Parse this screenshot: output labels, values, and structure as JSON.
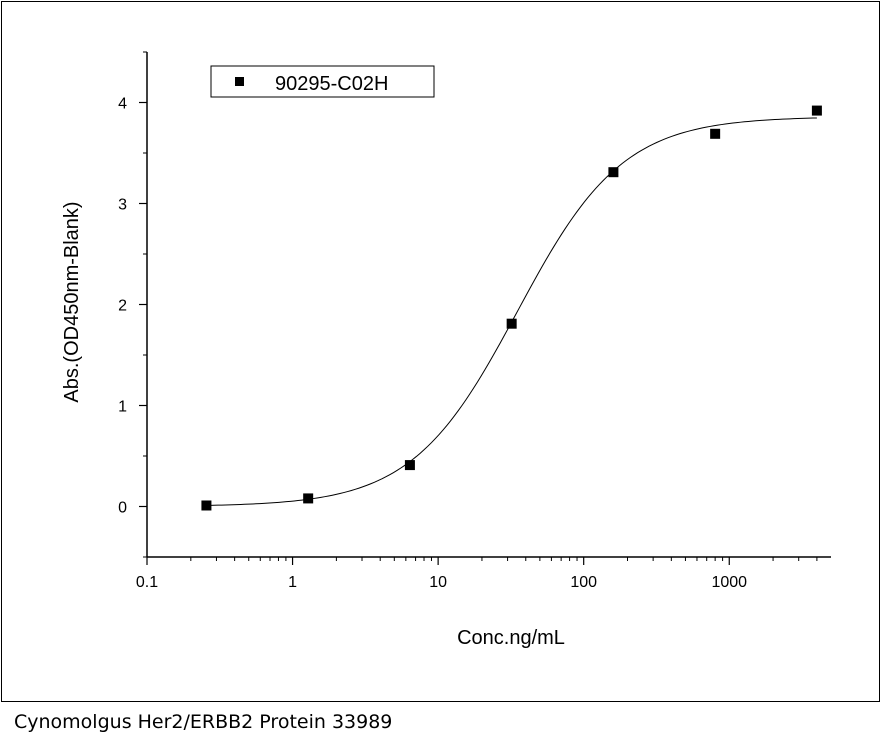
{
  "caption": "Cynomolgus Her2/ERBB2 Protein 33989",
  "colors": {
    "marker": "#000000",
    "line": "#000000",
    "background": "#ffffff"
  },
  "chart_data": {
    "type": "scatter",
    "title": "",
    "xlabel": "Conc.ng/mL",
    "ylabel": "Abs.(OD450nm-Blank)",
    "xscale": "log",
    "xlim": [
      0.1,
      5000
    ],
    "ylim": [
      -0.5,
      4.5
    ],
    "xticks": [
      0.1,
      1,
      10,
      100,
      1000
    ],
    "xtick_labels": [
      "0.1",
      "1",
      "10",
      "100",
      "1000"
    ],
    "yticks": [
      0,
      1,
      2,
      3,
      4
    ],
    "ytick_labels": [
      "0",
      "1",
      "2",
      "3",
      "4"
    ],
    "grid": false,
    "legend_position": "top-left",
    "series": [
      {
        "name": "90295-C02H",
        "marker": "square",
        "x": [
          0.256,
          1.28,
          6.4,
          32,
          160,
          800,
          4000
        ],
        "y": [
          0.01,
          0.08,
          0.41,
          1.81,
          3.31,
          3.69,
          3.92
        ]
      }
    ],
    "fit_curve": {
      "type": "4PL",
      "bottom": 0.0,
      "top": 3.86,
      "ec50": 35,
      "hill": 1.2
    }
  }
}
